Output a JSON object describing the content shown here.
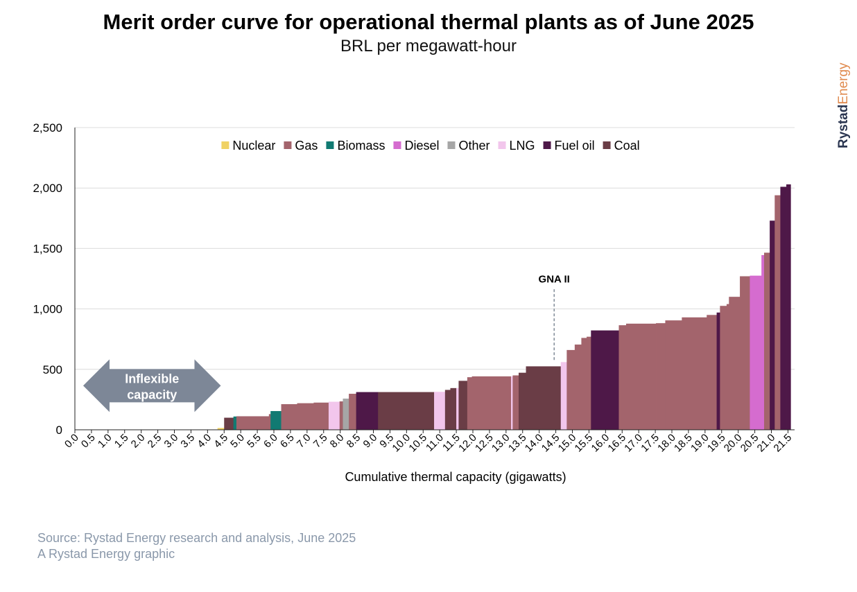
{
  "header": {
    "title": "Merit order curve for operational thermal plants as of June 2025",
    "subtitle": "BRL per megawatt-hour"
  },
  "brand": {
    "part1": "Rystad",
    "part2": "Energy"
  },
  "footer": {
    "source": "Source: Rystad Energy research and analysis, June 2025",
    "credit": "A Rystad Energy graphic"
  },
  "colors": {
    "Nuclear": "#f0d264",
    "Gas": "#a3646c",
    "Biomass": "#117a72",
    "Diesel": "#d56ccf",
    "Other": "#a6a6a6",
    "LNG": "#f2c6ec",
    "Fuel oil": "#4e1848",
    "Coal": "#6a3d46",
    "arrow": "#7d8797",
    "grid": "#dcdcdc"
  },
  "chart_data": {
    "type": "bar",
    "subtype": "merit-order (variable-width step bars)",
    "xlabel": "Cumulative thermal capacity (gigawatts)",
    "ylabel": "",
    "xlim": [
      0,
      21.7
    ],
    "ylim": [
      0,
      2500
    ],
    "y_ticks": [
      "0",
      "500",
      "1,000",
      "1,500",
      "2,000",
      "2,500"
    ],
    "y_tick_values": [
      0,
      500,
      1000,
      1500,
      2000,
      2500
    ],
    "x_ticks": [
      "0.0",
      "0.5",
      "1.0",
      "1.5",
      "2.0",
      "2.5",
      "3.0",
      "3.5",
      "4.0",
      "4.5",
      "5.0",
      "5.5",
      "6.0",
      "6.5",
      "7.0",
      "7.5",
      "8.0",
      "8.5",
      "9.0",
      "9.5",
      "10.0",
      "10.5",
      "11.0",
      "11.5",
      "12.0",
      "12.5",
      "13.0",
      "13.5",
      "14.0",
      "14.5",
      "15.0",
      "15.5",
      "16.0",
      "16.5",
      "17.0",
      "17.5",
      "18.0",
      "18.5",
      "19.0",
      "19.5",
      "20.0",
      "20.5",
      "21.0",
      "21.5"
    ],
    "legend": [
      "Nuclear",
      "Gas",
      "Biomass",
      "Diesel",
      "Other",
      "LNG",
      "Fuel oil",
      "Coal"
    ],
    "legend_position": "top-center",
    "grid": true,
    "annotations": [
      {
        "label": "GNA II",
        "x": 14.45,
        "y": 1300
      },
      {
        "label": "Inflexible capacity",
        "x_range": [
          0.25,
          4.4
        ]
      }
    ],
    "segments": [
      {
        "type": "Nuclear",
        "x0": 4.3,
        "x1": 4.5,
        "value": 15
      },
      {
        "type": "Coal",
        "x0": 4.5,
        "x1": 4.78,
        "value": 100
      },
      {
        "type": "Biomass",
        "x0": 4.78,
        "x1": 4.87,
        "value": 110
      },
      {
        "type": "Gas",
        "x0": 4.87,
        "x1": 5.85,
        "value": 112
      },
      {
        "type": "Gas",
        "x0": 5.85,
        "x1": 5.9,
        "value": 130
      },
      {
        "type": "Biomass",
        "x0": 5.9,
        "x1": 6.22,
        "value": 155
      },
      {
        "type": "Gas",
        "x0": 6.22,
        "x1": 6.7,
        "value": 212
      },
      {
        "type": "Gas",
        "x0": 6.7,
        "x1": 7.2,
        "value": 220
      },
      {
        "type": "Gas",
        "x0": 7.2,
        "x1": 7.65,
        "value": 225
      },
      {
        "type": "LNG",
        "x0": 7.65,
        "x1": 7.98,
        "value": 232
      },
      {
        "type": "Gas",
        "x0": 7.98,
        "x1": 8.08,
        "value": 235
      },
      {
        "type": "Other",
        "x0": 8.08,
        "x1": 8.26,
        "value": 258
      },
      {
        "type": "Gas",
        "x0": 8.26,
        "x1": 8.48,
        "value": 298
      },
      {
        "type": "Fuel oil",
        "x0": 8.48,
        "x1": 9.14,
        "value": 312
      },
      {
        "type": "Coal",
        "x0": 9.14,
        "x1": 10.83,
        "value": 312
      },
      {
        "type": "LNG",
        "x0": 10.83,
        "x1": 11.16,
        "value": 314
      },
      {
        "type": "Coal",
        "x0": 11.16,
        "x1": 11.32,
        "value": 330
      },
      {
        "type": "Coal",
        "x0": 11.32,
        "x1": 11.5,
        "value": 345
      },
      {
        "type": "LNG",
        "x0": 11.5,
        "x1": 11.57,
        "value": 345
      },
      {
        "type": "Coal",
        "x0": 11.57,
        "x1": 11.83,
        "value": 405
      },
      {
        "type": "Gas",
        "x0": 11.83,
        "x1": 11.97,
        "value": 435
      },
      {
        "type": "Gas",
        "x0": 11.97,
        "x1": 13.15,
        "value": 442
      },
      {
        "type": "LNG",
        "x0": 13.15,
        "x1": 13.2,
        "value": 442
      },
      {
        "type": "Gas",
        "x0": 13.2,
        "x1": 13.38,
        "value": 450
      },
      {
        "type": "Coal",
        "x0": 13.38,
        "x1": 13.6,
        "value": 472
      },
      {
        "type": "Coal",
        "x0": 13.6,
        "x1": 14.65,
        "value": 525
      },
      {
        "type": "LNG",
        "x0": 14.65,
        "x1": 14.83,
        "value": 560
      },
      {
        "type": "Gas",
        "x0": 14.83,
        "x1": 15.07,
        "value": 660
      },
      {
        "type": "Gas",
        "x0": 15.07,
        "x1": 15.27,
        "value": 705
      },
      {
        "type": "Gas",
        "x0": 15.27,
        "x1": 15.43,
        "value": 760
      },
      {
        "type": "Gas",
        "x0": 15.43,
        "x1": 15.56,
        "value": 770
      },
      {
        "type": "Fuel oil",
        "x0": 15.56,
        "x1": 16.4,
        "value": 822
      },
      {
        "type": "Gas",
        "x0": 16.4,
        "x1": 16.62,
        "value": 865
      },
      {
        "type": "Gas",
        "x0": 16.62,
        "x1": 17.52,
        "value": 878
      },
      {
        "type": "Gas",
        "x0": 17.52,
        "x1": 17.8,
        "value": 882
      },
      {
        "type": "Gas",
        "x0": 17.8,
        "x1": 18.3,
        "value": 905
      },
      {
        "type": "Gas",
        "x0": 18.3,
        "x1": 19.05,
        "value": 930
      },
      {
        "type": "Gas",
        "x0": 19.05,
        "x1": 19.35,
        "value": 950
      },
      {
        "type": "Fuel oil",
        "x0": 19.35,
        "x1": 19.45,
        "value": 970
      },
      {
        "type": "Gas",
        "x0": 19.45,
        "x1": 19.65,
        "value": 1025
      },
      {
        "type": "Gas",
        "x0": 19.65,
        "x1": 19.72,
        "value": 1040
      },
      {
        "type": "Gas",
        "x0": 19.72,
        "x1": 20.05,
        "value": 1100
      },
      {
        "type": "Gas",
        "x0": 20.05,
        "x1": 20.35,
        "value": 1270
      },
      {
        "type": "Diesel",
        "x0": 20.35,
        "x1": 20.7,
        "value": 1275
      },
      {
        "type": "Diesel",
        "x0": 20.7,
        "x1": 20.78,
        "value": 1445
      },
      {
        "type": "Gas",
        "x0": 20.78,
        "x1": 20.95,
        "value": 1465
      },
      {
        "type": "Fuel oil",
        "x0": 20.95,
        "x1": 21.1,
        "value": 1730
      },
      {
        "type": "Gas",
        "x0": 21.1,
        "x1": 21.27,
        "value": 1940
      },
      {
        "type": "Fuel oil",
        "x0": 21.27,
        "x1": 21.45,
        "value": 2010
      },
      {
        "type": "Fuel oil",
        "x0": 21.45,
        "x1": 21.58,
        "value": 2030
      }
    ]
  }
}
